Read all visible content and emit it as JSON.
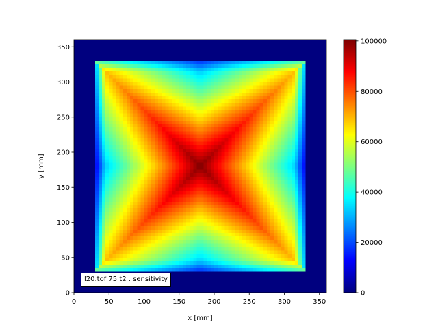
{
  "chart_data": {
    "type": "heatmap",
    "xlabel": "x [mm]",
    "ylabel": "y [mm]",
    "xlim": [
      0,
      360
    ],
    "ylim": [
      0,
      360
    ],
    "xticks": [
      0,
      50,
      100,
      150,
      200,
      250,
      300,
      350
    ],
    "yticks": [
      0,
      50,
      100,
      150,
      200,
      250,
      300,
      350
    ],
    "colormap": "jet",
    "clim": [
      0,
      100500
    ],
    "colorbar_ticks": [
      0,
      20000,
      40000,
      60000,
      80000,
      100000
    ],
    "active_region": {
      "x": [
        30,
        330
      ],
      "y": [
        30,
        330
      ]
    },
    "peak": {
      "x": 180,
      "y": 180,
      "value": 100000
    },
    "annotation": "l20.tof 75 t2 .  sensitivity",
    "grid": false
  }
}
